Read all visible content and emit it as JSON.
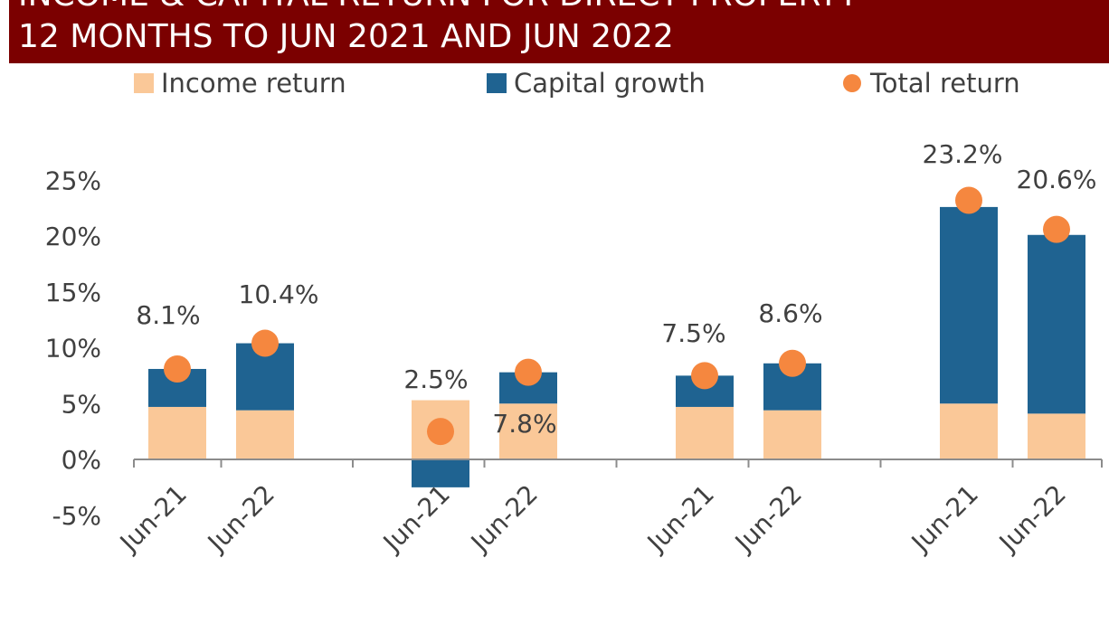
{
  "title": {
    "line1": "INCOME & CAPITAL RETURN FOR DIRECT PROPERTY",
    "line2": "12 MONTHS TO JUN 2021 AND JUN 2022"
  },
  "legend": {
    "income": "Income return",
    "capital": "Capital growth",
    "total": "Total return"
  },
  "colors": {
    "income": "#fac898",
    "capital": "#1f6391",
    "total": "#f5873f",
    "title_bg": "#7b0000"
  },
  "chart_data": {
    "type": "bar",
    "stacked": true,
    "categories": [
      "Jun-21",
      "Jun-22",
      "Jun-21",
      "Jun-22",
      "Jun-21",
      "Jun-22",
      "Jun-21",
      "Jun-22"
    ],
    "groups": [
      [
        0,
        1
      ],
      [
        2,
        3
      ],
      [
        4,
        5
      ],
      [
        6,
        7
      ]
    ],
    "series": [
      {
        "name": "Income return",
        "values": [
          4.7,
          4.4,
          5.3,
          5.0,
          4.7,
          4.4,
          5.0,
          4.1
        ]
      },
      {
        "name": "Capital growth",
        "values": [
          3.4,
          6.0,
          -2.5,
          2.8,
          2.8,
          4.2,
          17.6,
          16.0
        ]
      },
      {
        "name": "Total return",
        "kind": "dot",
        "values": [
          8.1,
          10.4,
          2.5,
          7.8,
          7.5,
          8.6,
          23.2,
          20.6
        ]
      }
    ],
    "data_labels": [
      "8.1%",
      "10.4%",
      "2.5%",
      "7.8%",
      "7.5%",
      "8.6%",
      "23.2%",
      "20.6%"
    ],
    "yticks": [
      "25%",
      "20%",
      "15%",
      "10%",
      "5%",
      "0%",
      "-5%"
    ],
    "ytick_values": [
      25,
      20,
      15,
      10,
      5,
      0,
      -5
    ],
    "ylim": [
      -5,
      25
    ],
    "legend_position": "top",
    "grid": false
  }
}
